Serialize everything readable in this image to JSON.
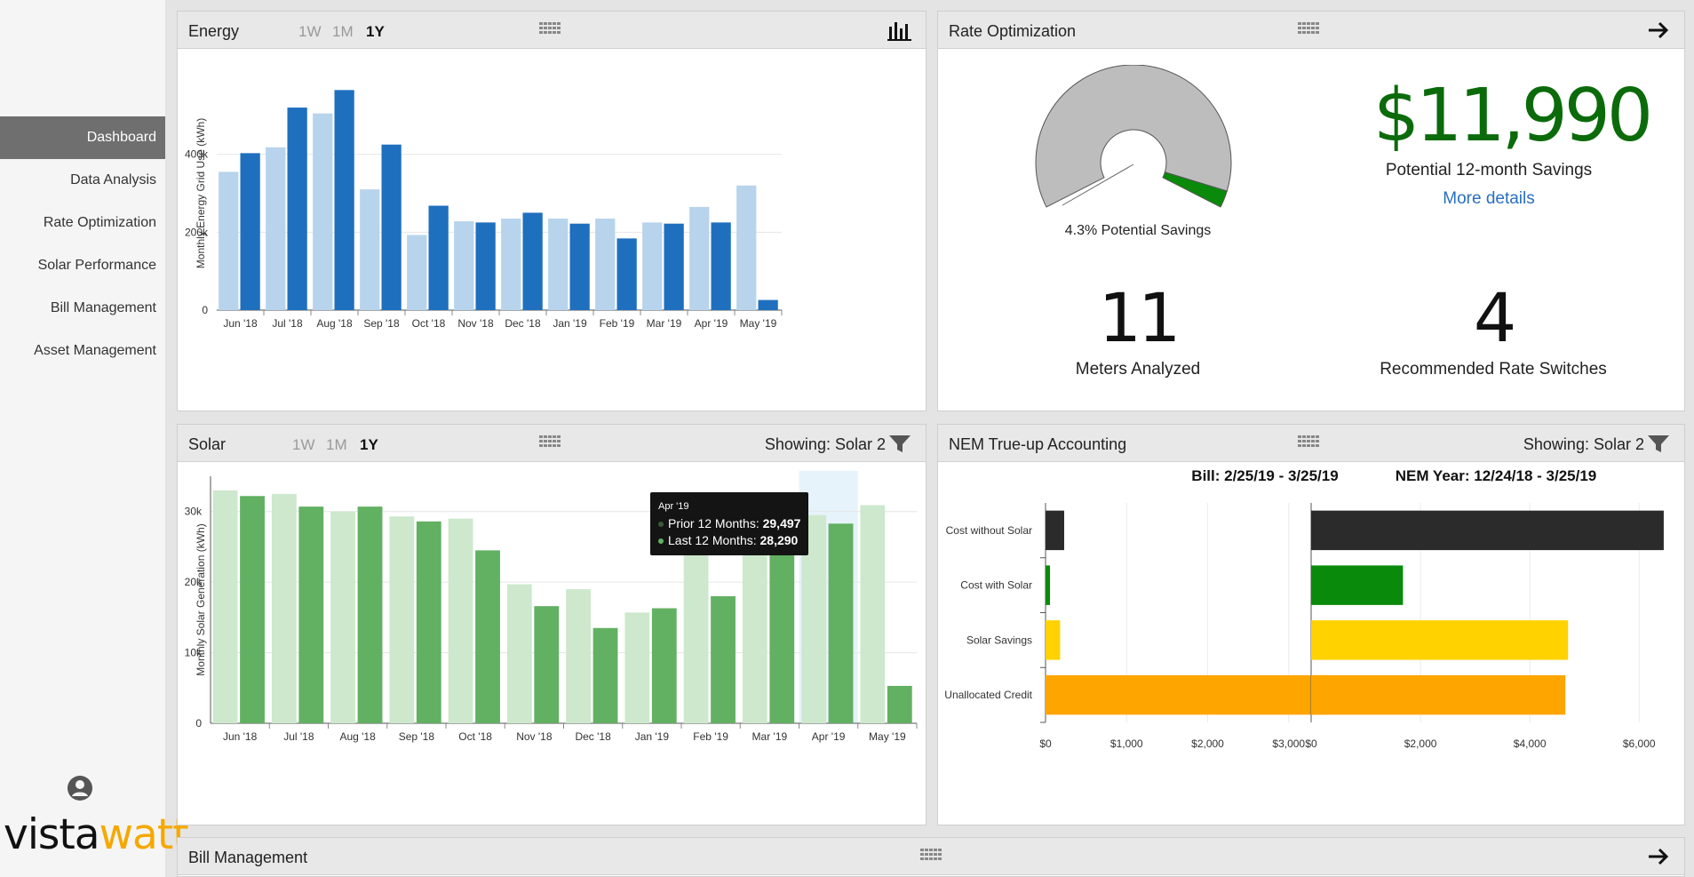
{
  "sidebar": {
    "items": [
      {
        "label": "Dashboard",
        "active": true
      },
      {
        "label": "Data Analysis",
        "active": false
      },
      {
        "label": "Rate Optimization",
        "active": false
      },
      {
        "label": "Solar Performance",
        "active": false
      },
      {
        "label": "Bill Management",
        "active": false
      },
      {
        "label": "Asset Management",
        "active": false
      }
    ],
    "logo": {
      "part1": "vista",
      "part2": "watt"
    },
    "user_icon": "user-circle-icon"
  },
  "energy": {
    "title": "Energy",
    "ranges": [
      "1W",
      "1M",
      "1Y"
    ],
    "selected_range": "1Y",
    "chart_data": {
      "type": "bar",
      "categories": [
        "Jun '18",
        "Jul '18",
        "Aug '18",
        "Sep '18",
        "Oct '18",
        "Nov '18",
        "Dec '18",
        "Jan '19",
        "Feb '19",
        "Mar '19",
        "Apr '19",
        "May '19"
      ],
      "series": [
        {
          "name": "",
          "color": "#b8d4ec",
          "values": [
            355000,
            418000,
            505000,
            310000,
            193000,
            228000,
            235000,
            235000,
            235000,
            225000,
            265000,
            320000
          ]
        },
        {
          "name": "",
          "color": "#1f6fbf",
          "values": [
            403000,
            520000,
            565000,
            425000,
            268000,
            225000,
            250000,
            222000,
            184000,
            222000,
            225000,
            26000
          ]
        }
      ],
      "ylabel": "Monthly Energy Grid Use (kWh)",
      "yticks": [
        "0",
        "200k",
        "400k"
      ],
      "ylim": [
        0,
        600000
      ],
      "grid": true
    }
  },
  "rate": {
    "title": "Rate Optimization",
    "savings_amount": "$11,990",
    "savings_label": "Potential 12-month Savings",
    "more_link": "More details",
    "gauge_label": "4.3% Potential Savings",
    "gauge_fraction": 0.043,
    "meters_value": "11",
    "meters_label": "Meters Analyzed",
    "switches_value": "4",
    "switches_label": "Recommended Rate Switches"
  },
  "solar": {
    "title": "Solar",
    "ranges": [
      "1W",
      "1M",
      "1Y"
    ],
    "selected_range": "1Y",
    "showing": "Showing: Solar 2",
    "chart_data": {
      "type": "bar",
      "categories": [
        "Jun '18",
        "Jul '18",
        "Aug '18",
        "Sep '18",
        "Oct '18",
        "Nov '18",
        "Dec '18",
        "Jan '19",
        "Feb '19",
        "Mar '19",
        "Apr '19",
        "May '19"
      ],
      "series": [
        {
          "name": "Prior 12 Months",
          "color": "#cde8cd",
          "values": [
            33000,
            32500,
            30000,
            29300,
            29000,
            19700,
            19000,
            15700,
            24200,
            24300,
            29497,
            30900
          ]
        },
        {
          "name": "Last 12 Months",
          "color": "#62b062",
          "values": [
            32200,
            30700,
            30700,
            28600,
            24500,
            16600,
            13500,
            16300,
            18000,
            28000,
            28290,
            5300
          ]
        }
      ],
      "ylabel": "Monthly Solar Generation (kWh)",
      "yticks": [
        "0",
        "10k",
        "20k",
        "30k"
      ],
      "ylim": [
        0,
        35000
      ],
      "grid": true,
      "highlight_index": 10
    },
    "tooltip": {
      "title": "Apr '19",
      "row1_label": "Prior 12 Months:",
      "row1_value": "29,497",
      "row2_label": "Last 12 Months:",
      "row2_value": "28,290"
    }
  },
  "nem": {
    "title": "NEM True-up Accounting",
    "showing": "Showing: Solar 2",
    "chart_data": [
      {
        "type": "bar",
        "title": "Bill: 2/25/19 - 3/25/19",
        "categories": [
          "Cost without Solar",
          "Cost with Solar",
          "Solar Savings",
          "Unallocated Credit"
        ],
        "values": [
          230,
          55,
          180,
          3480
        ],
        "colors": [
          "#2b2b2b",
          "#0a8a0a",
          "#ffd200",
          "#ffa500"
        ],
        "xticks": [
          "$0",
          "$1,000",
          "$2,000",
          "$3,000"
        ],
        "xlim": [
          0,
          4000
        ]
      },
      {
        "type": "bar",
        "title": "NEM Year: 12/24/18 - 3/25/19",
        "categories": [
          "Cost without Solar",
          "Cost with Solar",
          "Solar Savings",
          "Unallocated Credit"
        ],
        "values": [
          6450,
          1680,
          4700,
          4650
        ],
        "colors": [
          "#2b2b2b",
          "#0a8a0a",
          "#ffd200",
          "#ffa500"
        ],
        "xticks": [
          "$0",
          "$2,000",
          "$4,000",
          "$6,000"
        ],
        "xlim": [
          0,
          6500
        ]
      }
    ]
  },
  "bill": {
    "title": "Bill Management"
  }
}
